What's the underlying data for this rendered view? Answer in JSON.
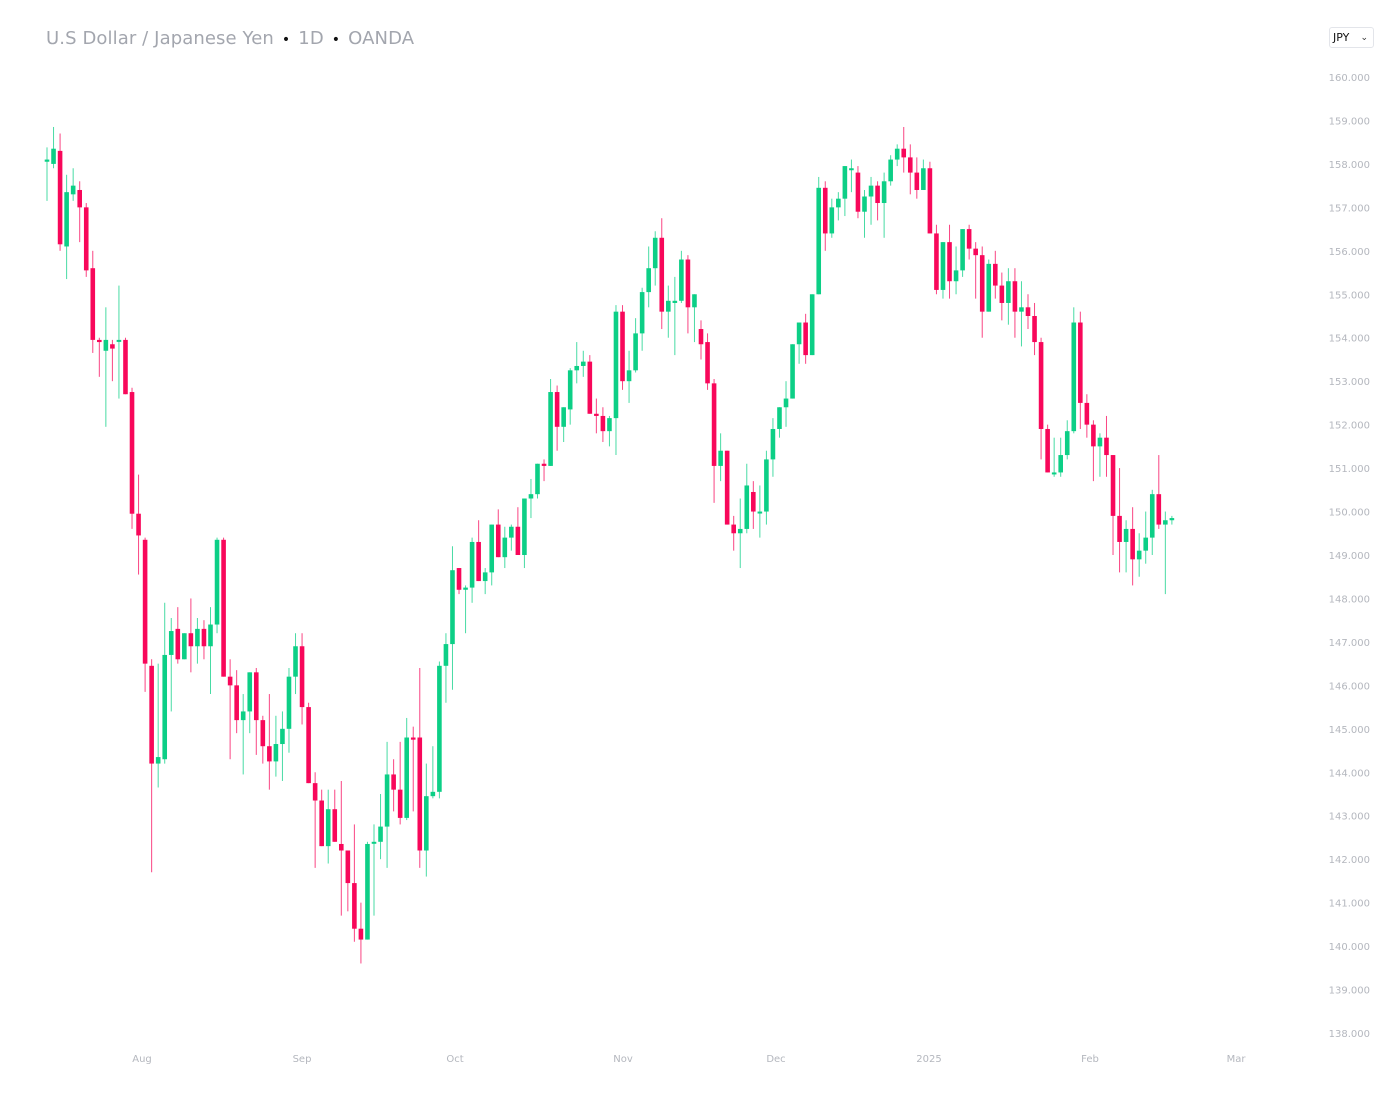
{
  "header": {
    "symbol": "U.S Dollar  / Japanese Yen",
    "interval": "1D",
    "source": "OANDA",
    "separator": "•"
  },
  "currency_select": {
    "value": "JPY",
    "chevron": "chevron-down-icon"
  },
  "colors": {
    "up": "#0ccf86",
    "down": "#f8075a",
    "axis_text": "#b4b7be",
    "title": "#a3a6ae"
  },
  "chart_data": {
    "type": "candlestick",
    "title": "U.S Dollar / Japanese Yen · 1D · OANDA",
    "xlabel": "",
    "ylabel": "",
    "ylim": [
      137.5,
      160.5
    ],
    "grid": false,
    "legend": "none",
    "y_ticks": [
      "160.000",
      "159.000",
      "158.000",
      "157.000",
      "156.000",
      "155.000",
      "154.000",
      "153.000",
      "152.000",
      "151.000",
      "150.000",
      "149.000",
      "148.000",
      "147.000",
      "146.000",
      "145.000",
      "144.000",
      "143.000",
      "142.000",
      "141.000",
      "140.000",
      "139.000",
      "138.000"
    ],
    "x_ticks": [
      {
        "label": "Aug",
        "index": 14
      },
      {
        "label": "Sep",
        "index": 39
      },
      {
        "label": "Oct",
        "index": 62
      },
      {
        "label": "Nov",
        "index": 88
      },
      {
        "label": "Dec",
        "index": 111
      },
      {
        "label": "2025",
        "index": 133
      },
      {
        "label": "Feb",
        "index": 159
      },
      {
        "label": "Mar",
        "index": 180
      }
    ],
    "ohlc_order": [
      "open",
      "high",
      "low",
      "close"
    ],
    "candles": [
      [
        158.05,
        158.38,
        157.15,
        158.1
      ],
      [
        158.0,
        158.85,
        157.9,
        158.35
      ],
      [
        158.3,
        158.7,
        156.0,
        156.15
      ],
      [
        156.1,
        157.75,
        155.35,
        157.35
      ],
      [
        157.3,
        157.9,
        157.15,
        157.5
      ],
      [
        157.4,
        157.6,
        156.2,
        157.0
      ],
      [
        157.0,
        157.1,
        155.4,
        155.55
      ],
      [
        155.6,
        156.0,
        153.65,
        153.95
      ],
      [
        153.95,
        154.0,
        153.1,
        153.9
      ],
      [
        153.7,
        154.7,
        151.95,
        153.95
      ],
      [
        153.85,
        153.95,
        153.0,
        153.75
      ],
      [
        153.95,
        155.2,
        152.6,
        153.95
      ],
      [
        153.95,
        154.0,
        152.8,
        152.7
      ],
      [
        152.75,
        152.85,
        149.6,
        149.95
      ],
      [
        149.95,
        150.85,
        148.55,
        149.45
      ],
      [
        149.35,
        149.4,
        145.85,
        146.5
      ],
      [
        146.45,
        146.6,
        141.7,
        144.2
      ],
      [
        144.2,
        146.5,
        143.65,
        144.35
      ],
      [
        144.3,
        147.9,
        144.2,
        146.7
      ],
      [
        146.7,
        147.55,
        145.4,
        147.25
      ],
      [
        147.3,
        147.8,
        146.5,
        146.6
      ],
      [
        146.6,
        147.2,
        146.7,
        147.2
      ],
      [
        147.2,
        148.0,
        146.3,
        146.9
      ],
      [
        146.9,
        147.55,
        146.5,
        147.3
      ],
      [
        147.3,
        147.5,
        146.6,
        146.9
      ],
      [
        146.9,
        147.8,
        145.8,
        147.4
      ],
      [
        147.4,
        149.4,
        147.2,
        149.35
      ],
      [
        149.35,
        149.4,
        147.3,
        146.2
      ],
      [
        146.2,
        146.6,
        144.3,
        146.0
      ],
      [
        146.0,
        146.35,
        144.9,
        145.2
      ],
      [
        145.2,
        145.8,
        143.95,
        145.4
      ],
      [
        145.4,
        146.15,
        144.9,
        146.3
      ],
      [
        146.3,
        146.4,
        144.4,
        145.2
      ],
      [
        145.2,
        145.3,
        144.2,
        144.6
      ],
      [
        144.6,
        145.8,
        143.6,
        144.25
      ],
      [
        144.25,
        145.3,
        143.9,
        144.65
      ],
      [
        144.65,
        145.4,
        143.8,
        145.0
      ],
      [
        145.0,
        146.4,
        144.45,
        146.2
      ],
      [
        146.2,
        147.2,
        145.8,
        146.9
      ],
      [
        146.9,
        147.2,
        145.1,
        145.5
      ],
      [
        145.5,
        145.6,
        143.8,
        143.75
      ],
      [
        143.75,
        144.0,
        141.8,
        143.35
      ],
      [
        143.35,
        143.6,
        142.3,
        142.3
      ],
      [
        142.3,
        143.6,
        141.9,
        143.15
      ],
      [
        143.15,
        143.6,
        142.6,
        142.4
      ],
      [
        142.35,
        143.8,
        140.7,
        142.2
      ],
      [
        142.2,
        142.2,
        140.8,
        141.45
      ],
      [
        141.45,
        142.8,
        140.1,
        140.4
      ],
      [
        140.4,
        141.0,
        139.6,
        140.15
      ],
      [
        140.15,
        142.4,
        140.4,
        142.35
      ],
      [
        142.4,
        142.8,
        140.7,
        142.4
      ],
      [
        142.4,
        143.5,
        142.0,
        142.75
      ],
      [
        142.75,
        144.7,
        141.8,
        143.95
      ],
      [
        143.95,
        144.3,
        143.1,
        143.6
      ],
      [
        143.6,
        144.7,
        142.8,
        142.95
      ],
      [
        142.95,
        145.25,
        142.9,
        144.8
      ],
      [
        144.8,
        145.05,
        143.1,
        144.75
      ],
      [
        144.8,
        146.4,
        141.8,
        142.2
      ],
      [
        142.2,
        144.2,
        141.6,
        143.45
      ],
      [
        143.45,
        144.6,
        143.4,
        143.55
      ],
      [
        143.55,
        146.55,
        143.4,
        146.45
      ],
      [
        146.45,
        147.2,
        145.6,
        146.95
      ],
      [
        146.95,
        149.2,
        145.9,
        148.65
      ],
      [
        148.7,
        148.65,
        148.1,
        148.2
      ],
      [
        148.2,
        148.3,
        147.2,
        148.25
      ],
      [
        148.25,
        149.4,
        147.9,
        149.3
      ],
      [
        149.3,
        149.8,
        148.4,
        148.4
      ],
      [
        148.4,
        148.7,
        148.1,
        148.6
      ],
      [
        148.6,
        149.7,
        148.3,
        149.7
      ],
      [
        149.7,
        150.05,
        149.05,
        148.95
      ],
      [
        148.95,
        149.65,
        148.7,
        149.4
      ],
      [
        149.4,
        149.7,
        149.1,
        149.65
      ],
      [
        149.65,
        150.1,
        149.0,
        149.0
      ],
      [
        149.0,
        150.3,
        148.7,
        150.3
      ],
      [
        150.3,
        150.75,
        149.85,
        150.4
      ],
      [
        150.4,
        151.1,
        150.3,
        151.1
      ],
      [
        151.1,
        151.2,
        150.7,
        151.05
      ],
      [
        151.05,
        153.05,
        151.1,
        152.75
      ],
      [
        152.75,
        152.9,
        151.4,
        151.95
      ],
      [
        151.95,
        152.3,
        151.6,
        152.4
      ],
      [
        152.35,
        153.3,
        152.0,
        153.25
      ],
      [
        153.25,
        153.9,
        152.95,
        153.35
      ],
      [
        153.35,
        153.7,
        153.1,
        153.45
      ],
      [
        153.45,
        153.6,
        152.9,
        152.25
      ],
      [
        152.25,
        152.6,
        151.8,
        152.2
      ],
      [
        152.2,
        152.4,
        151.6,
        151.85
      ],
      [
        151.85,
        152.2,
        151.5,
        152.15
      ],
      [
        152.15,
        154.75,
        151.3,
        154.6
      ],
      [
        154.6,
        154.75,
        152.8,
        153.0
      ],
      [
        153.0,
        153.7,
        152.5,
        153.25
      ],
      [
        153.25,
        154.45,
        153.2,
        154.1
      ],
      [
        154.1,
        155.15,
        153.7,
        155.05
      ],
      [
        155.05,
        156.1,
        154.7,
        155.6
      ],
      [
        155.6,
        156.45,
        155.2,
        156.3
      ],
      [
        156.3,
        156.75,
        154.2,
        154.6
      ],
      [
        154.6,
        155.2,
        154.0,
        154.85
      ],
      [
        154.8,
        155.4,
        153.6,
        154.85
      ],
      [
        154.85,
        156.0,
        154.8,
        155.8
      ],
      [
        155.8,
        155.9,
        154.1,
        154.7
      ],
      [
        154.7,
        155.0,
        153.9,
        155.0
      ],
      [
        154.2,
        154.4,
        153.5,
        153.85
      ],
      [
        153.9,
        154.1,
        152.8,
        152.95
      ],
      [
        152.95,
        153.05,
        150.2,
        151.05
      ],
      [
        151.05,
        151.8,
        150.7,
        151.4
      ],
      [
        151.4,
        151.4,
        149.9,
        149.7
      ],
      [
        149.7,
        149.9,
        149.1,
        149.5
      ],
      [
        149.5,
        150.3,
        148.7,
        149.6
      ],
      [
        149.6,
        151.1,
        149.5,
        150.6
      ],
      [
        150.45,
        150.7,
        149.6,
        150.0
      ],
      [
        150.0,
        150.6,
        149.4,
        150.0
      ],
      [
        150.0,
        151.4,
        149.7,
        151.2
      ],
      [
        151.2,
        152.15,
        150.8,
        151.9
      ],
      [
        151.9,
        152.2,
        151.7,
        152.4
      ],
      [
        152.4,
        153.0,
        151.95,
        152.6
      ],
      [
        152.6,
        153.8,
        152.6,
        153.85
      ],
      [
        153.85,
        154.2,
        153.4,
        154.35
      ],
      [
        154.35,
        154.55,
        153.4,
        153.6
      ],
      [
        153.6,
        155.0,
        153.6,
        155.0
      ],
      [
        155.0,
        157.7,
        155.2,
        157.45
      ],
      [
        157.45,
        157.6,
        156.0,
        156.4
      ],
      [
        156.4,
        157.2,
        156.3,
        157.0
      ],
      [
        157.0,
        157.35,
        156.7,
        157.2
      ],
      [
        157.2,
        157.8,
        156.8,
        157.95
      ],
      [
        157.9,
        158.1,
        157.35,
        157.9
      ],
      [
        157.8,
        157.95,
        156.75,
        156.9
      ],
      [
        156.9,
        157.4,
        156.3,
        157.25
      ],
      [
        157.25,
        157.7,
        156.6,
        157.5
      ],
      [
        157.5,
        157.6,
        156.7,
        157.1
      ],
      [
        157.1,
        157.8,
        156.3,
        157.6
      ],
      [
        157.6,
        158.2,
        157.5,
        158.1
      ],
      [
        158.1,
        158.45,
        157.95,
        158.35
      ],
      [
        158.35,
        158.85,
        157.8,
        158.15
      ],
      [
        158.15,
        158.45,
        157.3,
        157.8
      ],
      [
        157.8,
        158.15,
        157.2,
        157.4
      ],
      [
        157.4,
        158.1,
        157.5,
        157.9
      ],
      [
        157.9,
        158.05,
        156.8,
        156.4
      ],
      [
        156.4,
        156.6,
        155.0,
        155.1
      ],
      [
        155.1,
        156.2,
        154.9,
        156.2
      ],
      [
        156.2,
        156.6,
        154.9,
        155.3
      ],
      [
        155.3,
        156.1,
        155.0,
        155.55
      ],
      [
        155.55,
        156.5,
        155.4,
        156.5
      ],
      [
        156.5,
        156.6,
        155.8,
        156.05
      ],
      [
        156.05,
        156.2,
        154.9,
        155.9
      ],
      [
        155.9,
        156.1,
        154.0,
        154.6
      ],
      [
        154.6,
        155.8,
        154.6,
        155.7
      ],
      [
        155.7,
        156.0,
        154.9,
        155.2
      ],
      [
        155.2,
        155.5,
        154.4,
        154.8
      ],
      [
        154.8,
        155.6,
        154.3,
        155.3
      ],
      [
        155.3,
        155.6,
        154.0,
        154.6
      ],
      [
        154.6,
        155.3,
        153.8,
        154.7
      ],
      [
        154.7,
        155.0,
        154.2,
        154.5
      ],
      [
        154.5,
        154.8,
        153.6,
        153.9
      ],
      [
        153.9,
        154.0,
        151.2,
        151.9
      ],
      [
        151.9,
        152.0,
        150.9,
        150.9
      ],
      [
        150.9,
        151.7,
        150.8,
        150.9
      ],
      [
        150.9,
        151.7,
        150.8,
        151.3
      ],
      [
        151.3,
        152.1,
        151.2,
        151.85
      ],
      [
        151.85,
        154.7,
        151.8,
        154.35
      ],
      [
        154.35,
        154.6,
        151.9,
        152.5
      ],
      [
        152.5,
        152.7,
        151.7,
        152.0
      ],
      [
        152.0,
        152.1,
        150.7,
        151.5
      ],
      [
        151.5,
        151.8,
        150.8,
        151.7
      ],
      [
        151.7,
        152.2,
        150.8,
        151.3
      ],
      [
        151.3,
        151.3,
        149.0,
        149.9
      ],
      [
        149.9,
        151.0,
        148.6,
        149.3
      ],
      [
        149.3,
        149.8,
        148.6,
        149.6
      ],
      [
        149.6,
        150.1,
        148.3,
        148.9
      ],
      [
        148.9,
        149.5,
        148.5,
        149.1
      ],
      [
        149.1,
        150.0,
        148.8,
        149.4
      ],
      [
        149.4,
        150.5,
        149.0,
        150.4
      ],
      [
        150.4,
        151.3,
        149.6,
        149.7
      ],
      [
        149.7,
        150.0,
        148.1,
        149.8
      ],
      [
        149.8,
        149.9,
        149.7,
        149.85
      ]
    ]
  }
}
